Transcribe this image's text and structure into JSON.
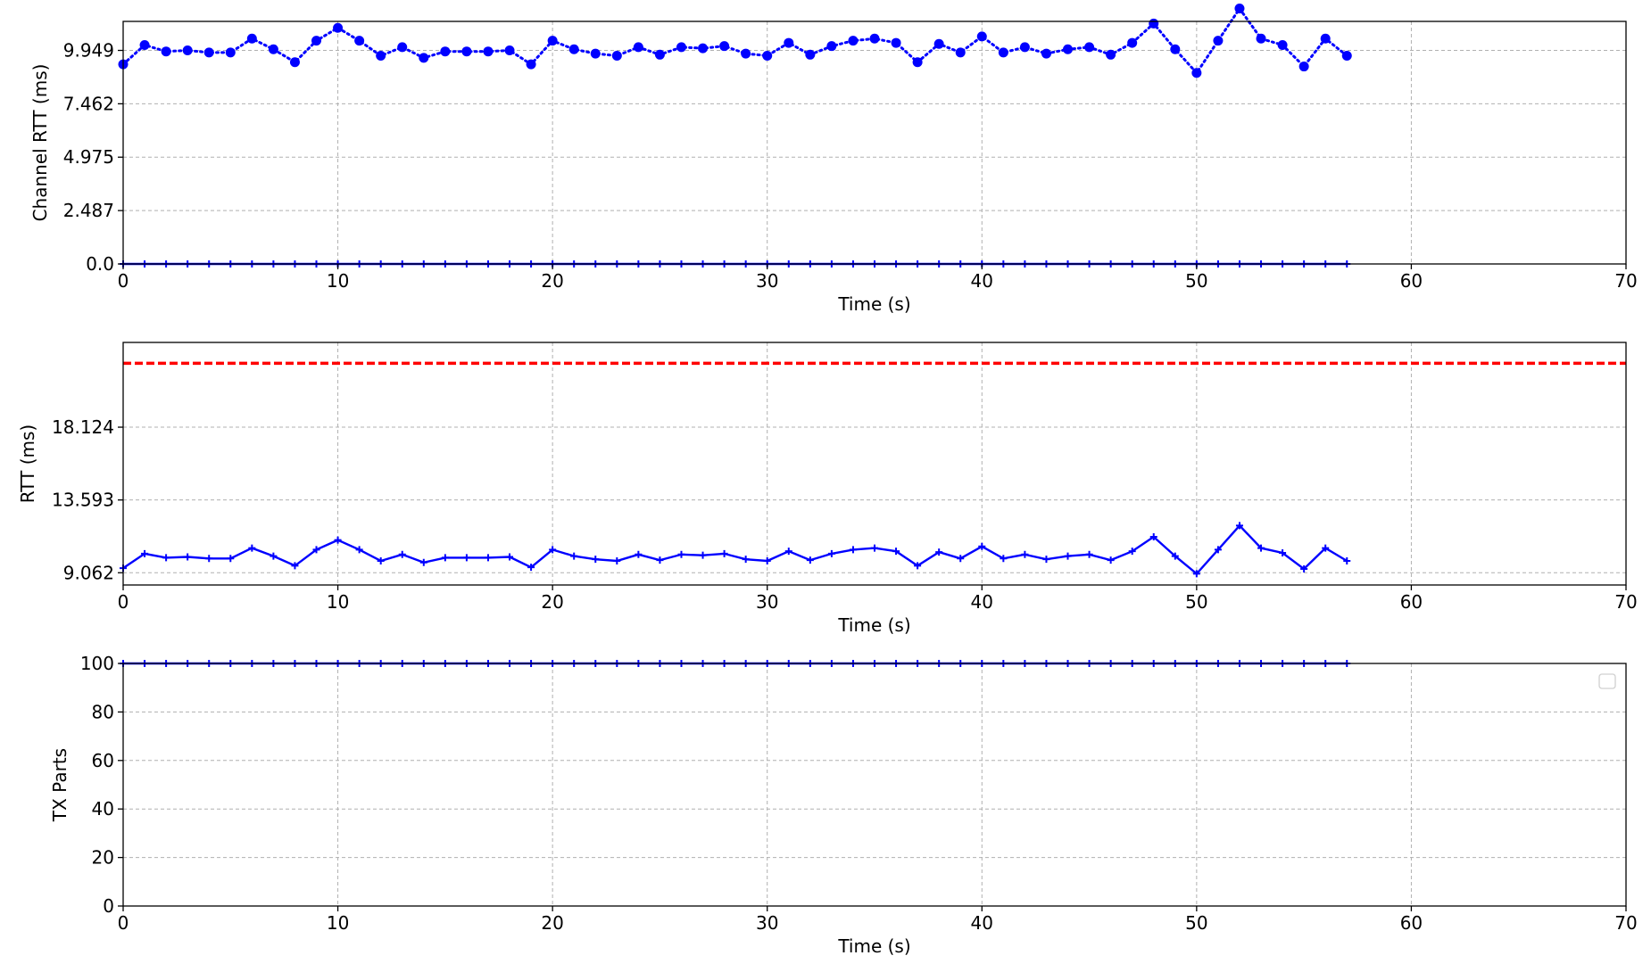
{
  "chart_data": [
    {
      "type": "line",
      "title": "",
      "xlabel": "Time (s)",
      "ylabel": "Channel RTT (ms)",
      "xlim": [
        0,
        70
      ],
      "ylim": [
        0,
        11.3
      ],
      "xticks": [
        0,
        10,
        20,
        30,
        40,
        50,
        60,
        70
      ],
      "yticks": [
        0.0,
        2.487,
        4.975,
        7.462,
        9.949
      ],
      "ytick_labels": [
        "0.0",
        "2.487",
        "4.975",
        "7.462",
        "9.949"
      ],
      "grid": true,
      "x": [
        0,
        1,
        2,
        3,
        4,
        5,
        6,
        7,
        8,
        9,
        10,
        11,
        12,
        13,
        14,
        15,
        16,
        17,
        18,
        19,
        20,
        21,
        22,
        23,
        24,
        25,
        26,
        27,
        28,
        29,
        30,
        31,
        32,
        33,
        34,
        35,
        36,
        37,
        38,
        39,
        40,
        41,
        42,
        43,
        44,
        45,
        46,
        47,
        48,
        49,
        50,
        51,
        52,
        53,
        54,
        55,
        56,
        57
      ],
      "series": [
        {
          "color": "#0000ff",
          "style": "dotted",
          "marker": "circle",
          "values": [
            9.3,
            10.2,
            9.9,
            9.95,
            9.85,
            9.85,
            10.5,
            10.0,
            9.4,
            10.4,
            11.0,
            10.4,
            9.7,
            10.1,
            9.6,
            9.9,
            9.9,
            9.9,
            9.95,
            9.3,
            10.4,
            10.0,
            9.8,
            9.7,
            10.1,
            9.75,
            10.1,
            10.05,
            10.15,
            9.8,
            9.7,
            10.3,
            9.75,
            10.15,
            10.4,
            10.5,
            10.3,
            9.4,
            10.25,
            9.85,
            10.6,
            9.85,
            10.1,
            9.8,
            10.0,
            10.1,
            9.75,
            10.3,
            11.2,
            10.0,
            8.9,
            10.4,
            11.9,
            10.5,
            10.2,
            9.2,
            10.5,
            9.7
          ]
        },
        {
          "color": "#0000ff",
          "style": "solid",
          "marker": "plus",
          "values": [
            0,
            0,
            0,
            0,
            0,
            0,
            0,
            0,
            0,
            0,
            0,
            0,
            0,
            0,
            0,
            0,
            0,
            0,
            0,
            0,
            0,
            0,
            0,
            0,
            0,
            0,
            0,
            0,
            0,
            0,
            0,
            0,
            0,
            0,
            0,
            0,
            0,
            0,
            0,
            0,
            0,
            0,
            0,
            0,
            0,
            0,
            0,
            0,
            0,
            0,
            0,
            0,
            0,
            0,
            0,
            0,
            0,
            0
          ]
        }
      ]
    },
    {
      "type": "line",
      "title": "",
      "xlabel": "Time (s)",
      "ylabel": "RTT (ms)",
      "xlim": [
        0,
        70
      ],
      "ylim": [
        8.3,
        23.4
      ],
      "xticks": [
        0,
        10,
        20,
        30,
        40,
        50,
        60,
        70
      ],
      "yticks": [
        9.062,
        13.593,
        18.124
      ],
      "ytick_labels": [
        "9.062",
        "13.593",
        "18.124"
      ],
      "grid": true,
      "x": [
        0,
        1,
        2,
        3,
        4,
        5,
        6,
        7,
        8,
        9,
        10,
        11,
        12,
        13,
        14,
        15,
        16,
        17,
        18,
        19,
        20,
        21,
        22,
        23,
        24,
        25,
        26,
        27,
        28,
        29,
        30,
        31,
        32,
        33,
        34,
        35,
        36,
        37,
        38,
        39,
        40,
        41,
        42,
        43,
        44,
        45,
        46,
        47,
        48,
        49,
        50,
        51,
        52,
        53,
        54,
        55,
        56,
        57
      ],
      "threshold": {
        "value": 22.1,
        "color": "#ff0000",
        "style": "dashed"
      },
      "series": [
        {
          "color": "#0000ff",
          "style": "solid",
          "marker": "plus",
          "values": [
            9.35,
            10.25,
            10.0,
            10.05,
            9.95,
            9.95,
            10.6,
            10.1,
            9.5,
            10.5,
            11.1,
            10.5,
            9.8,
            10.2,
            9.7,
            10.0,
            10.0,
            10.0,
            10.05,
            9.4,
            10.5,
            10.1,
            9.9,
            9.8,
            10.2,
            9.85,
            10.2,
            10.15,
            10.25,
            9.9,
            9.8,
            10.4,
            9.85,
            10.25,
            10.5,
            10.6,
            10.4,
            9.5,
            10.35,
            9.95,
            10.7,
            9.95,
            10.2,
            9.9,
            10.1,
            10.2,
            9.85,
            10.4,
            11.3,
            10.1,
            9.0,
            10.5,
            12.0,
            10.6,
            10.3,
            9.3,
            10.6,
            9.8
          ]
        }
      ]
    },
    {
      "type": "line",
      "title": "",
      "xlabel": "Time (s)",
      "ylabel": "TX Parts",
      "xlim": [
        0,
        70
      ],
      "ylim": [
        0,
        100
      ],
      "xticks": [
        0,
        10,
        20,
        30,
        40,
        50,
        60,
        70
      ],
      "yticks": [
        0,
        20,
        40,
        60,
        80,
        100
      ],
      "ytick_labels": [
        "0",
        "20",
        "40",
        "60",
        "80",
        "100"
      ],
      "grid": true,
      "legend": "top-right",
      "x": [
        0,
        1,
        2,
        3,
        4,
        5,
        6,
        7,
        8,
        9,
        10,
        11,
        12,
        13,
        14,
        15,
        16,
        17,
        18,
        19,
        20,
        21,
        22,
        23,
        24,
        25,
        26,
        27,
        28,
        29,
        30,
        31,
        32,
        33,
        34,
        35,
        36,
        37,
        38,
        39,
        40,
        41,
        42,
        43,
        44,
        45,
        46,
        47,
        48,
        49,
        50,
        51,
        52,
        53,
        54,
        55,
        56,
        57
      ],
      "series": [
        {
          "color": "#0000ff",
          "style": "solid",
          "marker": "plus",
          "values": [
            100,
            100,
            100,
            100,
            100,
            100,
            100,
            100,
            100,
            100,
            100,
            100,
            100,
            100,
            100,
            100,
            100,
            100,
            100,
            100,
            100,
            100,
            100,
            100,
            100,
            100,
            100,
            100,
            100,
            100,
            100,
            100,
            100,
            100,
            100,
            100,
            100,
            100,
            100,
            100,
            100,
            100,
            100,
            100,
            100,
            100,
            100,
            100,
            100,
            100,
            100,
            100,
            100,
            100,
            100,
            100,
            100,
            100
          ]
        }
      ]
    }
  ]
}
